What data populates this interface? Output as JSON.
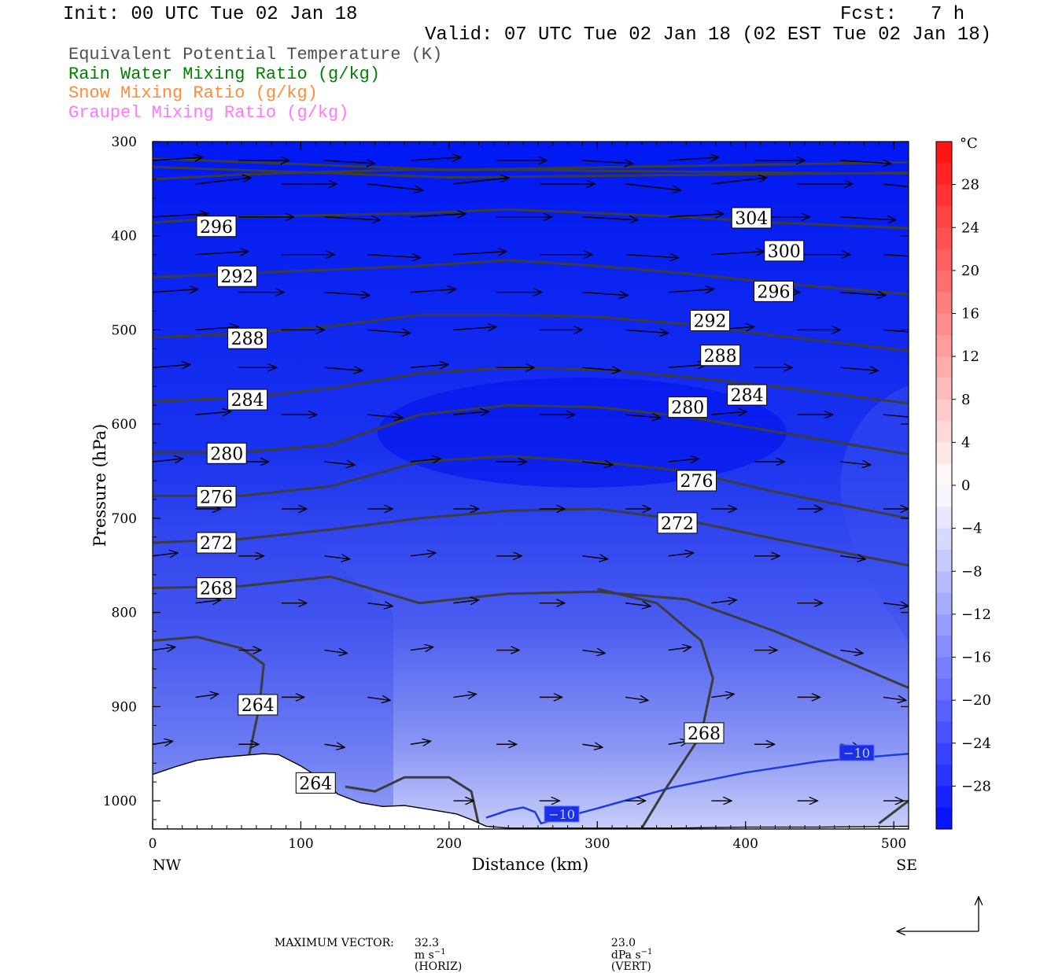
{
  "header": {
    "init": "Init: 00 UTC Tue 02 Jan 18",
    "fcst_label": "Fcst:",
    "fcst_value": "7 h",
    "valid": "Valid: 07 UTC Tue 02 Jan 18 (02 EST Tue 02 Jan 18)"
  },
  "fields": [
    {
      "text": "Equivalent Potential Temperature (K)",
      "color": "#505050"
    },
    {
      "text": "Rain Water Mixing Ratio (g/kg)",
      "color": "#008000"
    },
    {
      "text": "Snow Mixing Ratio (g/kg)",
      "color": "#ff8c3c"
    },
    {
      "text": "Graupel Mixing Ratio (g/kg)",
      "color": "#ff78ff"
    }
  ],
  "colors": {
    "theta_e_contour": "#3c3c3c",
    "temp_minus10_contour": "#1e3cdc",
    "surface": "#ffffff"
  },
  "chart_data": {
    "type": "heatmap",
    "title": "",
    "xlabel": "Distance (km)",
    "ylabel": "Pressure (hPa)",
    "x_ticks": [
      "0",
      "100",
      "200",
      "300",
      "400",
      "500"
    ],
    "x_tick_values": [
      0,
      100,
      200,
      300,
      400,
      500
    ],
    "x_end_labels": {
      "left": "NW",
      "right": "SE"
    },
    "xlim": [
      0,
      510
    ],
    "y_ticks": [
      "300",
      "400",
      "500",
      "600",
      "700",
      "800",
      "900",
      "1000"
    ],
    "y_tick_values": [
      300,
      400,
      500,
      600,
      700,
      800,
      900,
      1000
    ],
    "ylim": [
      300,
      1030
    ],
    "y_scale": "linear",
    "colorbar": {
      "unit": "°C",
      "labels": [
        "28",
        "24",
        "20",
        "16",
        "12",
        "8",
        "4",
        "0",
        "−4",
        "−8",
        "−12",
        "−16",
        "−20",
        "−24",
        "−28"
      ],
      "label_values": [
        28,
        24,
        20,
        16,
        12,
        8,
        4,
        0,
        -4,
        -8,
        -12,
        -16,
        -20,
        -24,
        -28
      ],
      "range": [
        -32,
        32
      ],
      "step": 2
    },
    "theta_e_labels": [
      {
        "text": "296",
        "x": 43,
        "p": 390
      },
      {
        "text": "292",
        "x": 57,
        "p": 443
      },
      {
        "text": "288",
        "x": 64,
        "p": 509
      },
      {
        "text": "284",
        "x": 64,
        "p": 574
      },
      {
        "text": "280",
        "x": 50,
        "p": 631
      },
      {
        "text": "276",
        "x": 43,
        "p": 677
      },
      {
        "text": "272",
        "x": 43,
        "p": 726
      },
      {
        "text": "268",
        "x": 43,
        "p": 774
      },
      {
        "text": "264",
        "x": 71,
        "p": 898
      },
      {
        "text": "264",
        "x": 110,
        "p": 981
      },
      {
        "text": "268",
        "x": 372,
        "p": 928
      },
      {
        "text": "272",
        "x": 354,
        "p": 705
      },
      {
        "text": "276",
        "x": 367,
        "p": 660
      },
      {
        "text": "280",
        "x": 361,
        "p": 582
      },
      {
        "text": "284",
        "x": 401,
        "p": 569
      },
      {
        "text": "288",
        "x": 383,
        "p": 527
      },
      {
        "text": "292",
        "x": 376,
        "p": 490
      },
      {
        "text": "296",
        "x": 419,
        "p": 459
      },
      {
        "text": "300",
        "x": 426,
        "p": 416
      },
      {
        "text": "304",
        "x": 404,
        "p": 381
      }
    ],
    "temp_contour_labels": [
      {
        "text": "−10",
        "x": 276,
        "p": 1014
      },
      {
        "text": "−10",
        "x": 475,
        "p": 949
      }
    ],
    "surface_pressure": {
      "x": [
        0,
        15,
        30,
        45,
        60,
        75,
        85,
        100,
        115,
        125,
        140,
        155,
        170,
        190,
        205,
        215,
        225,
        240,
        260,
        300,
        350,
        400,
        450,
        510
      ],
      "p": [
        972,
        964,
        957,
        954,
        952,
        950,
        951,
        963,
        978,
        993,
        1002,
        1006,
        1005,
        1010,
        1014,
        1020,
        1027,
        1029,
        1029,
        1029,
        1029,
        1028,
        1028,
        1027
      ]
    },
    "footer": {
      "label": "MAXIMUM VECTOR:",
      "horiz_value": "32.3",
      "horiz_unit": "m s",
      "horiz_exp": "−1",
      "horiz_tag": "(HORIZ)",
      "vert_value": "23.0",
      "vert_unit": "dPa s",
      "vert_exp": "−1",
      "vert_tag": "(VERT)"
    },
    "wind_vectors": {
      "x": [
        0,
        58,
        116,
        174,
        232,
        290,
        348,
        406,
        464
      ],
      "p": [
        320,
        345,
        380,
        420,
        460,
        500,
        540,
        590,
        640,
        690,
        740,
        790,
        840,
        890,
        940,
        1000
      ],
      "u": [
        20,
        22,
        22,
        21,
        18,
        17,
        15,
        14,
        12,
        10,
        10,
        10,
        9,
        9,
        8,
        8
      ],
      "v": [
        1,
        2,
        1,
        1,
        1,
        1,
        1,
        1,
        1,
        0,
        1,
        1,
        1,
        1,
        1,
        0
      ]
    }
  }
}
